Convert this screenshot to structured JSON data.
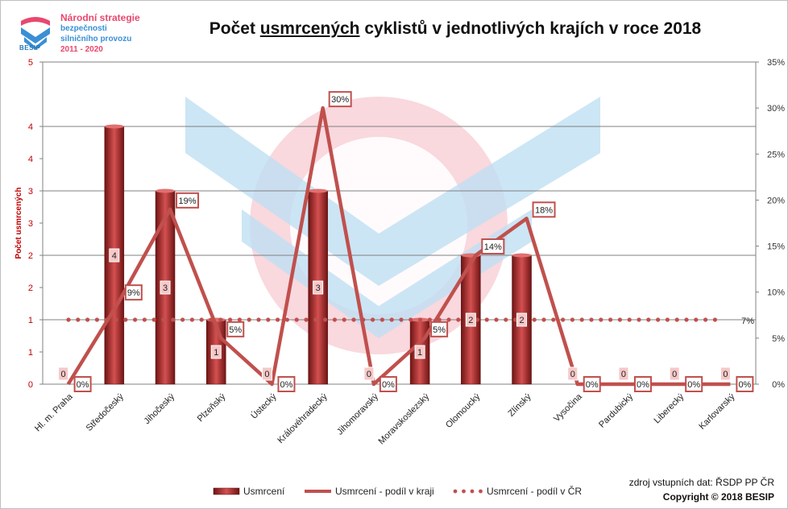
{
  "logo": {
    "word": "BESIP",
    "lines": [
      "Národní strategie",
      "bezpečnosti",
      "silničního provozu",
      "2011 - 2020"
    ]
  },
  "title": {
    "prefix": "Počet ",
    "underlined": "usmrcených",
    "middle": " cyklistů",
    "suffix": " v jednotlivých krajích v roce 2018"
  },
  "source_note": "zdroj vstupních dat: ŘSDP PP ČR",
  "copyright": "Copyright © 2018  BESIP",
  "legend": {
    "bars": "Usmrcení",
    "line": "Usmrcení - podíl v kraji",
    "dotted": "Usmrcení - podíl v ČR"
  },
  "colors": {
    "bar": "#a52a2a",
    "bar_light": "#d45050",
    "line": "#c0504d",
    "label_border": "#c0504d",
    "watermark_pink": "#f7c7d0",
    "watermark_blue": "#bfe0f2",
    "axis_text": "#c00000"
  },
  "chart_data": {
    "type": "bar",
    "title": "Počet usmrcených cyklistů v jednotlivých krajích v roce 2018",
    "categories": [
      "Hl. m. Praha",
      "Středočeský",
      "Jihočeský",
      "Plzeňský",
      "Ústecký",
      "Královéhradecký",
      "Jihomoravský",
      "Moravskoslezský",
      "Olomoucký",
      "Zlínský",
      "Vysočina",
      "Pardubický",
      "Liberecký",
      "Karlovarský"
    ],
    "ylabel": "Počet usmrcených",
    "ylim": [
      0,
      5
    ],
    "y2lim": [
      0,
      35
    ],
    "y_ticks": [
      "0",
      "1",
      "2",
      "3",
      "4",
      "5"
    ],
    "y_ticks_dup": [
      "1",
      "2",
      "3",
      "4"
    ],
    "y2_ticks": [
      "0%",
      "5%",
      "10%",
      "15%",
      "20%",
      "25%",
      "30%",
      "35%"
    ],
    "series": [
      {
        "name": "Usmrcení",
        "type": "bar",
        "axis": "left",
        "values": [
          0,
          4,
          3,
          1,
          0,
          3,
          0,
          1,
          2,
          2,
          0,
          0,
          0,
          0
        ],
        "labels": [
          "0",
          "4",
          "3",
          "1",
          "0",
          "3",
          "0",
          "1",
          "2",
          "2",
          "0",
          "0",
          "0",
          "0"
        ]
      },
      {
        "name": "Usmrcení - podíl v kraji",
        "type": "line",
        "axis": "right",
        "values": [
          0,
          9,
          19,
          5,
          0,
          30,
          0,
          5,
          14,
          18,
          0,
          0,
          0,
          0
        ],
        "labels": [
          "0%",
          "9%",
          "19%",
          "5%",
          "0%",
          "30%",
          "0%",
          "5%",
          "14%",
          "18%",
          "0%",
          "0%",
          "0%",
          "0%"
        ]
      },
      {
        "name": "Usmrcení - podíl v ČR",
        "type": "dotted",
        "axis": "right",
        "value": 7,
        "label": "7%"
      }
    ],
    "grid": true
  }
}
